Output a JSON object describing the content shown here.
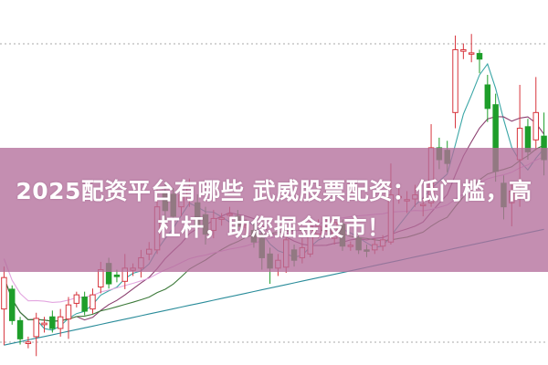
{
  "banner": {
    "title_line1": "2025配资平台有哪些 武威股票配资：低门槛，高",
    "title_line2": "杠杆，助您掘金股市！",
    "background_color": "#b46e9b"
  },
  "chart_data": {
    "type": "candlestick",
    "title": "",
    "xlabel": "",
    "ylabel": "",
    "ylim": [
      -8,
      100
    ],
    "grid": "dotted horizontal lines",
    "colors": {
      "up": "#d7343c",
      "down": "#1e9e2a",
      "ma5": "#3aa6a6",
      "ma10": "#8a3d6e",
      "ma20": "#3d7a3a",
      "ma60": "#e3a6e0",
      "long_ma": "#2a8c9a",
      "gridline": "#aaaaaa"
    },
    "ohlc": [
      [
        7.5,
        21,
        -4,
        17.5
      ],
      [
        13.8,
        15,
        2.5,
        3.8
      ],
      [
        3.8,
        5,
        -3.8,
        -2
      ],
      [
        -3.5,
        -1.3,
        -5,
        -3
      ],
      [
        -1.3,
        6.3,
        -7.5,
        4.5
      ],
      [
        2.5,
        5,
        0,
        3
      ],
      [
        5,
        7,
        0,
        1.3
      ],
      [
        1.3,
        7.5,
        -1.3,
        5
      ],
      [
        4.3,
        11.3,
        -2,
        8.8
      ],
      [
        9.3,
        13,
        8,
        12
      ],
      [
        11.3,
        13,
        5.5,
        6.8
      ],
      [
        7.5,
        14,
        6,
        12
      ],
      [
        14.5,
        22.5,
        12.5,
        20
      ],
      [
        22,
        23.8,
        14,
        15.5
      ],
      [
        18.3,
        20,
        16,
        17.8
      ],
      [
        16.3,
        25,
        13.8,
        20.5
      ],
      [
        19.8,
        22,
        18,
        20.5
      ],
      [
        20.5,
        26.3,
        17.5,
        23.8
      ],
      [
        25,
        28.8,
        23,
        26.5
      ],
      [
        26.3,
        46.3,
        25,
        40
      ],
      [
        45,
        48,
        35,
        38.8
      ],
      [
        44,
        46,
        33,
        37
      ],
      [
        40,
        47,
        37,
        43.8
      ],
      [
        42.5,
        49,
        40,
        46.3
      ],
      [
        41.3,
        44,
        31,
        33.8
      ],
      [
        37.5,
        40,
        28,
        31.3
      ],
      [
        32.5,
        39,
        30,
        36.3
      ],
      [
        36,
        38,
        34,
        36.5
      ],
      [
        37.3,
        40,
        35,
        37.8
      ],
      [
        37,
        39,
        32,
        33.8
      ],
      [
        33.5,
        36,
        31,
        34
      ],
      [
        32.5,
        35,
        27,
        28.8
      ],
      [
        30,
        32,
        20,
        23.8
      ],
      [
        25,
        27,
        15.5,
        20.5
      ],
      [
        20.5,
        25,
        18,
        23
      ],
      [
        20.8,
        32.5,
        19,
        29.5
      ],
      [
        26.3,
        28,
        21,
        23
      ],
      [
        23.8,
        30,
        22,
        27
      ],
      [
        25,
        37,
        24,
        33.8
      ],
      [
        31.3,
        36,
        30,
        33.8
      ],
      [
        33.8,
        36,
        32,
        34.5
      ],
      [
        30,
        37,
        28,
        35
      ],
      [
        34.5,
        36,
        26,
        27.5
      ],
      [
        27.5,
        29,
        26,
        27.8
      ],
      [
        30,
        31,
        25,
        26.3
      ],
      [
        26.3,
        28,
        24,
        26
      ],
      [
        26.3,
        30,
        25,
        28
      ],
      [
        27.5,
        31,
        26,
        29.5
      ],
      [
        28.8,
        53.8,
        28,
        43.8
      ],
      [
        43,
        46,
        41,
        43.3
      ],
      [
        42,
        45,
        38,
        42.3
      ],
      [
        42.5,
        47,
        40,
        43.8
      ],
      [
        40.5,
        43,
        37,
        40.8
      ],
      [
        41.3,
        66.3,
        40,
        58.8
      ],
      [
        58.8,
        62,
        52,
        55
      ],
      [
        58,
        61,
        51,
        53.8
      ],
      [
        70,
        94.5,
        65,
        90
      ],
      [
        89.5,
        92,
        87,
        90
      ],
      [
        89,
        95,
        86,
        89
      ],
      [
        88.8,
        90,
        82.5,
        87
      ],
      [
        78.8,
        82,
        67,
        71.3
      ],
      [
        72.5,
        76,
        48,
        51.3
      ],
      [
        47.5,
        50,
        36,
        40
      ],
      [
        41.3,
        48,
        33.8,
        45
      ],
      [
        55,
        78.8,
        40,
        65
      ],
      [
        65.5,
        68,
        55,
        57.5
      ],
      [
        61.3,
        81.3,
        58,
        70
      ],
      [
        62.5,
        70,
        50,
        55
      ]
    ],
    "moving_averages": [
      "MA5",
      "MA10",
      "MA20",
      "MA60",
      "long"
    ]
  }
}
